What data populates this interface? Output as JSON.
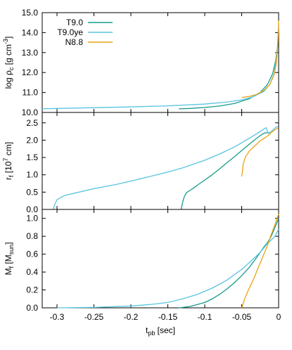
{
  "chart_data": [
    {
      "type": "line",
      "ylabel": "log ρ",
      "ylabel_sub": "c",
      "ylabel_unit_pre": " [g cm",
      "ylabel_unit_sup": "-3",
      "ylabel_unit_post": "]",
      "ylim": [
        10.0,
        15.0
      ],
      "yticks": [
        "10.0",
        "11.0",
        "12.0",
        "13.0",
        "14.0",
        "15.0"
      ],
      "xlim": [
        -0.32,
        0.0
      ],
      "legend": {
        "placement": "top-left"
      },
      "series": [
        {
          "name": "T9.0",
          "color": "#159d8a",
          "x": [
            -0.135,
            -0.12,
            -0.1,
            -0.08,
            -0.06,
            -0.04,
            -0.025,
            -0.015,
            -0.008,
            -0.004,
            -0.001
          ],
          "y": [
            10.18,
            10.2,
            10.25,
            10.32,
            10.45,
            10.68,
            11.0,
            11.4,
            11.95,
            12.6,
            13.4
          ]
        },
        {
          "name": "T9.0ye",
          "color": "#58c4e0",
          "x": [
            -0.32,
            -0.3,
            -0.25,
            -0.2,
            -0.15,
            -0.1,
            -0.07,
            -0.05,
            -0.035,
            -0.02,
            -0.012,
            -0.006,
            -0.002,
            0.0
          ],
          "y": [
            10.18,
            10.2,
            10.24,
            10.28,
            10.33,
            10.42,
            10.52,
            10.63,
            10.78,
            11.05,
            11.4,
            11.95,
            13.0,
            14.4
          ]
        },
        {
          "name": "N8.8",
          "color": "#e8a317",
          "x": [
            -0.05,
            -0.04,
            -0.03,
            -0.02,
            -0.012,
            -0.006,
            -0.003,
            -0.001,
            0.0
          ],
          "y": [
            10.75,
            10.8,
            10.9,
            11.1,
            11.4,
            11.9,
            12.5,
            13.5,
            14.6
          ]
        }
      ]
    },
    {
      "type": "line",
      "ylabel": "r",
      "ylabel_sub": "f",
      "ylabel_unit_pre": " [10",
      "ylabel_unit_sup": "7",
      "ylabel_unit_post": " cm]",
      "ylim": [
        0.0,
        2.8
      ],
      "yticks": [
        "0.0",
        "0.5",
        "1.0",
        "1.5",
        "2.0",
        "2.5"
      ],
      "xlim": [
        -0.32,
        0.0
      ],
      "series": [
        {
          "name": "T9.0",
          "color": "#159d8a",
          "x": [
            -0.132,
            -0.131,
            -0.13,
            -0.128,
            -0.125,
            -0.12,
            -0.115,
            -0.11,
            -0.1,
            -0.09,
            -0.08,
            -0.07,
            -0.06,
            -0.05,
            -0.04,
            -0.03,
            -0.025,
            -0.02,
            -0.015,
            -0.012
          ],
          "y": [
            0.0,
            0.1,
            0.2,
            0.35,
            0.48,
            0.55,
            0.62,
            0.7,
            0.85,
            1.0,
            1.17,
            1.35,
            1.52,
            1.7,
            1.88,
            2.05,
            2.13,
            2.2,
            2.22,
            2.2
          ]
        },
        {
          "name": "T9.0ye",
          "color": "#58c4e0",
          "x": [
            -0.305,
            -0.303,
            -0.3,
            -0.29,
            -0.28,
            -0.25,
            -0.22,
            -0.2,
            -0.18,
            -0.15,
            -0.13,
            -0.1,
            -0.08,
            -0.06,
            -0.04,
            -0.03,
            -0.02,
            -0.017,
            -0.014,
            -0.01,
            -0.005,
            -0.001
          ],
          "y": [
            0.0,
            0.15,
            0.28,
            0.4,
            0.45,
            0.6,
            0.72,
            0.82,
            0.92,
            1.08,
            1.2,
            1.42,
            1.6,
            1.8,
            2.05,
            2.18,
            2.32,
            2.36,
            2.2,
            2.25,
            2.35,
            2.4
          ]
        },
        {
          "name": "N8.8",
          "color": "#e8a317",
          "x": [
            -0.05,
            -0.049,
            -0.048,
            -0.046,
            -0.044,
            -0.042,
            -0.04,
            -0.035,
            -0.03,
            -0.025,
            -0.02,
            -0.015,
            -0.01,
            -0.005,
            -0.001
          ],
          "y": [
            0.95,
            1.1,
            1.3,
            1.45,
            1.55,
            1.6,
            1.68,
            1.78,
            1.88,
            1.98,
            2.05,
            2.12,
            2.22,
            2.3,
            2.35
          ]
        }
      ]
    },
    {
      "type": "line",
      "ylabel": "M",
      "ylabel_sub": "f",
      "ylabel_unit_pre": " [M",
      "ylabel_unit_sub": "sun",
      "ylabel_unit_post": "]",
      "xlabel": "t",
      "xlabel_sub": "pb",
      "xlabel_unit": " [sec]",
      "ylim": [
        0.0,
        1.1
      ],
      "yticks": [
        "0.0",
        "0.2",
        "0.4",
        "0.6",
        "0.8",
        "1.0"
      ],
      "xlim": [
        -0.32,
        0.0
      ],
      "xticks": [
        "-0.3",
        "-0.25",
        "-0.2",
        "-0.15",
        "-0.1",
        "-0.05",
        "0"
      ],
      "series": [
        {
          "name": "T9.0",
          "color": "#159d8a",
          "x": [
            -0.135,
            -0.12,
            -0.1,
            -0.09,
            -0.08,
            -0.07,
            -0.06,
            -0.05,
            -0.04,
            -0.03,
            -0.025,
            -0.02,
            -0.015,
            -0.01,
            -0.005,
            0.0
          ],
          "y": [
            0.0,
            0.015,
            0.06,
            0.1,
            0.15,
            0.21,
            0.28,
            0.36,
            0.45,
            0.56,
            0.62,
            0.68,
            0.73,
            0.8,
            0.9,
            1.0
          ]
        },
        {
          "name": "T9.0ye",
          "color": "#58c4e0",
          "x": [
            -0.3,
            -0.25,
            -0.2,
            -0.17,
            -0.15,
            -0.13,
            -0.11,
            -0.09,
            -0.07,
            -0.05,
            -0.035,
            -0.025,
            -0.02,
            -0.015,
            -0.01,
            -0.005,
            0.0
          ],
          "y": [
            0.0,
            0.005,
            0.02,
            0.04,
            0.06,
            0.1,
            0.15,
            0.22,
            0.31,
            0.43,
            0.54,
            0.62,
            0.67,
            0.72,
            0.76,
            0.8,
            0.88
          ]
        },
        {
          "name": "N8.8",
          "color": "#e8a317",
          "x": [
            -0.05,
            -0.049,
            -0.046,
            -0.042,
            -0.038,
            -0.034,
            -0.03,
            -0.025,
            -0.02,
            -0.015,
            -0.01,
            -0.005,
            0.0
          ],
          "y": [
            0.0,
            0.02,
            0.1,
            0.18,
            0.25,
            0.32,
            0.4,
            0.5,
            0.6,
            0.7,
            0.82,
            0.93,
            1.05
          ]
        }
      ]
    }
  ]
}
